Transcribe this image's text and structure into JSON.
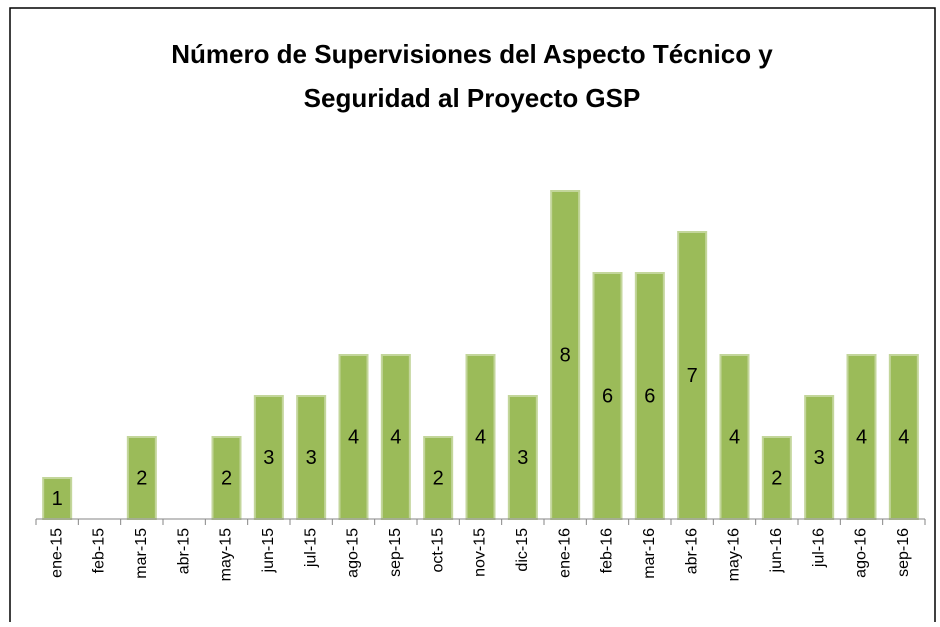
{
  "chart_data": {
    "type": "bar",
    "title": [
      "Número de Supervisiones del Aspecto Técnico y",
      "Seguridad al Proyecto GSP"
    ],
    "categories": [
      "ene-15",
      "feb-15",
      "mar-15",
      "abr-15",
      "may-15",
      "jun-15",
      "jul-15",
      "ago-15",
      "sep-15",
      "oct-15",
      "nov-15",
      "dic-15",
      "ene-16",
      "feb-16",
      "mar-16",
      "abr-16",
      "may-16",
      "jun-16",
      "jul-16",
      "ago-16",
      "sep-16"
    ],
    "values": [
      1,
      null,
      2,
      null,
      2,
      3,
      3,
      4,
      4,
      2,
      4,
      3,
      8,
      6,
      6,
      7,
      4,
      2,
      3,
      4,
      4
    ],
    "color": "#9bbb59",
    "ylim": [
      0,
      8
    ],
    "data_labels": true
  }
}
